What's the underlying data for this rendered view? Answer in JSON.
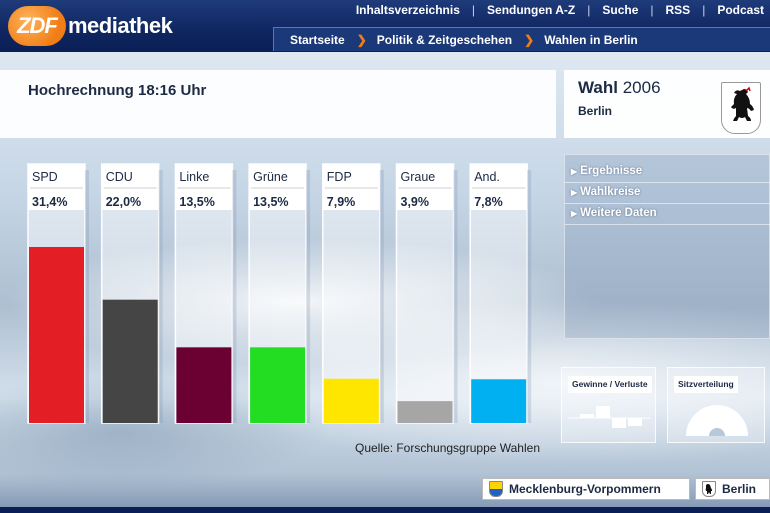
{
  "header": {
    "logo_zdf": "ZDF",
    "logo_text": "mediathek",
    "nav": [
      "Inhaltsverzeichnis",
      "Sendungen A-Z",
      "Suche",
      "RSS",
      "Podcast"
    ],
    "breadcrumb": [
      "Startseite",
      "Politik & Zeitgeschehen",
      "Wahlen in Berlin"
    ]
  },
  "title": "Hochrechnung 18:16 Uhr",
  "election": {
    "label": "Wahl",
    "year": "2006",
    "city": "Berlin"
  },
  "side_links": [
    "Ergebnisse",
    "Wahlkreise",
    "Weitere Daten"
  ],
  "source": "Quelle: Forschungsgruppe Wahlen",
  "mini_panels": {
    "gains": "Gewinne / Verluste",
    "seats": "Sitzverteilung"
  },
  "states": [
    "Mecklenburg-Vorpommern",
    "Berlin"
  ],
  "colors": {
    "accent": "#f07d16",
    "header": "#0f2660"
  },
  "chart_data": {
    "type": "bar",
    "categories": [
      "SPD",
      "CDU",
      "Linke",
      "Grüne",
      "FDP",
      "Graue",
      "And."
    ],
    "values": [
      31.4,
      22.0,
      13.5,
      13.5,
      7.9,
      3.9,
      7.8
    ],
    "value_labels": [
      "31,4%",
      "22,0%",
      "13,5%",
      "13,5%",
      "7,9%",
      "3,9%",
      "7,8%"
    ],
    "colors": [
      "#e31e24",
      "#454545",
      "#6b0033",
      "#22dd22",
      "#ffe600",
      "#a6a6a6",
      "#00b0f0"
    ],
    "ylim": [
      0,
      38
    ],
    "grid": false
  }
}
